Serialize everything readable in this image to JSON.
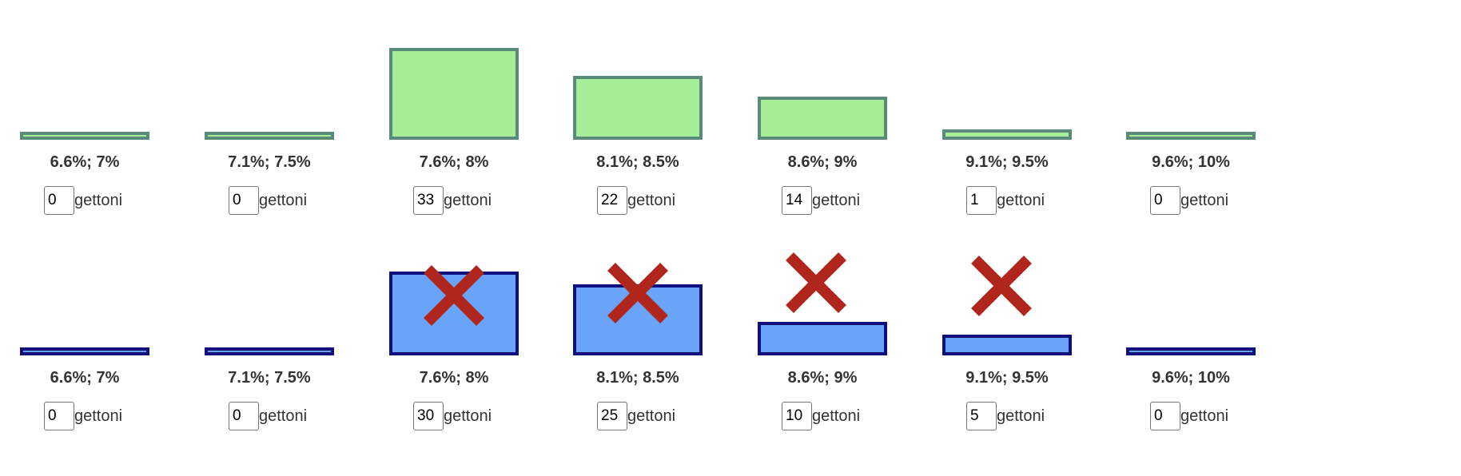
{
  "unit_label": "gettoni",
  "colors": {
    "top_fill": "#a6ee98",
    "top_border": "#5a8a7a",
    "bottom_fill": "#6aa4f8",
    "bottom_border": "#0f0f80",
    "cross": "#b0251c"
  },
  "cross_icon": "x-cross-icon",
  "top_row": {
    "cols": [
      {
        "label": "6.6%; 7%",
        "value": "0"
      },
      {
        "label": "7.1%; 7.5%",
        "value": "0"
      },
      {
        "label": "7.6%; 8%",
        "value": "33"
      },
      {
        "label": "8.1%; 8.5%",
        "value": "22"
      },
      {
        "label": "8.6%; 9%",
        "value": "14"
      },
      {
        "label": "9.1%; 9.5%",
        "value": "1"
      },
      {
        "label": "9.6%; 10%",
        "value": "0"
      }
    ]
  },
  "bottom_row": {
    "cols": [
      {
        "label": "6.6%; 7%",
        "value": "0",
        "crossed": false
      },
      {
        "label": "7.1%; 7.5%",
        "value": "0",
        "crossed": false
      },
      {
        "label": "7.6%; 8%",
        "value": "30",
        "crossed": true
      },
      {
        "label": "8.1%; 8.5%",
        "value": "25",
        "crossed": true
      },
      {
        "label": "8.6%; 9%",
        "value": "10",
        "crossed": true
      },
      {
        "label": "9.1%; 9.5%",
        "value": "5",
        "crossed": true
      },
      {
        "label": "9.6%; 10%",
        "value": "0",
        "crossed": false
      }
    ]
  }
}
